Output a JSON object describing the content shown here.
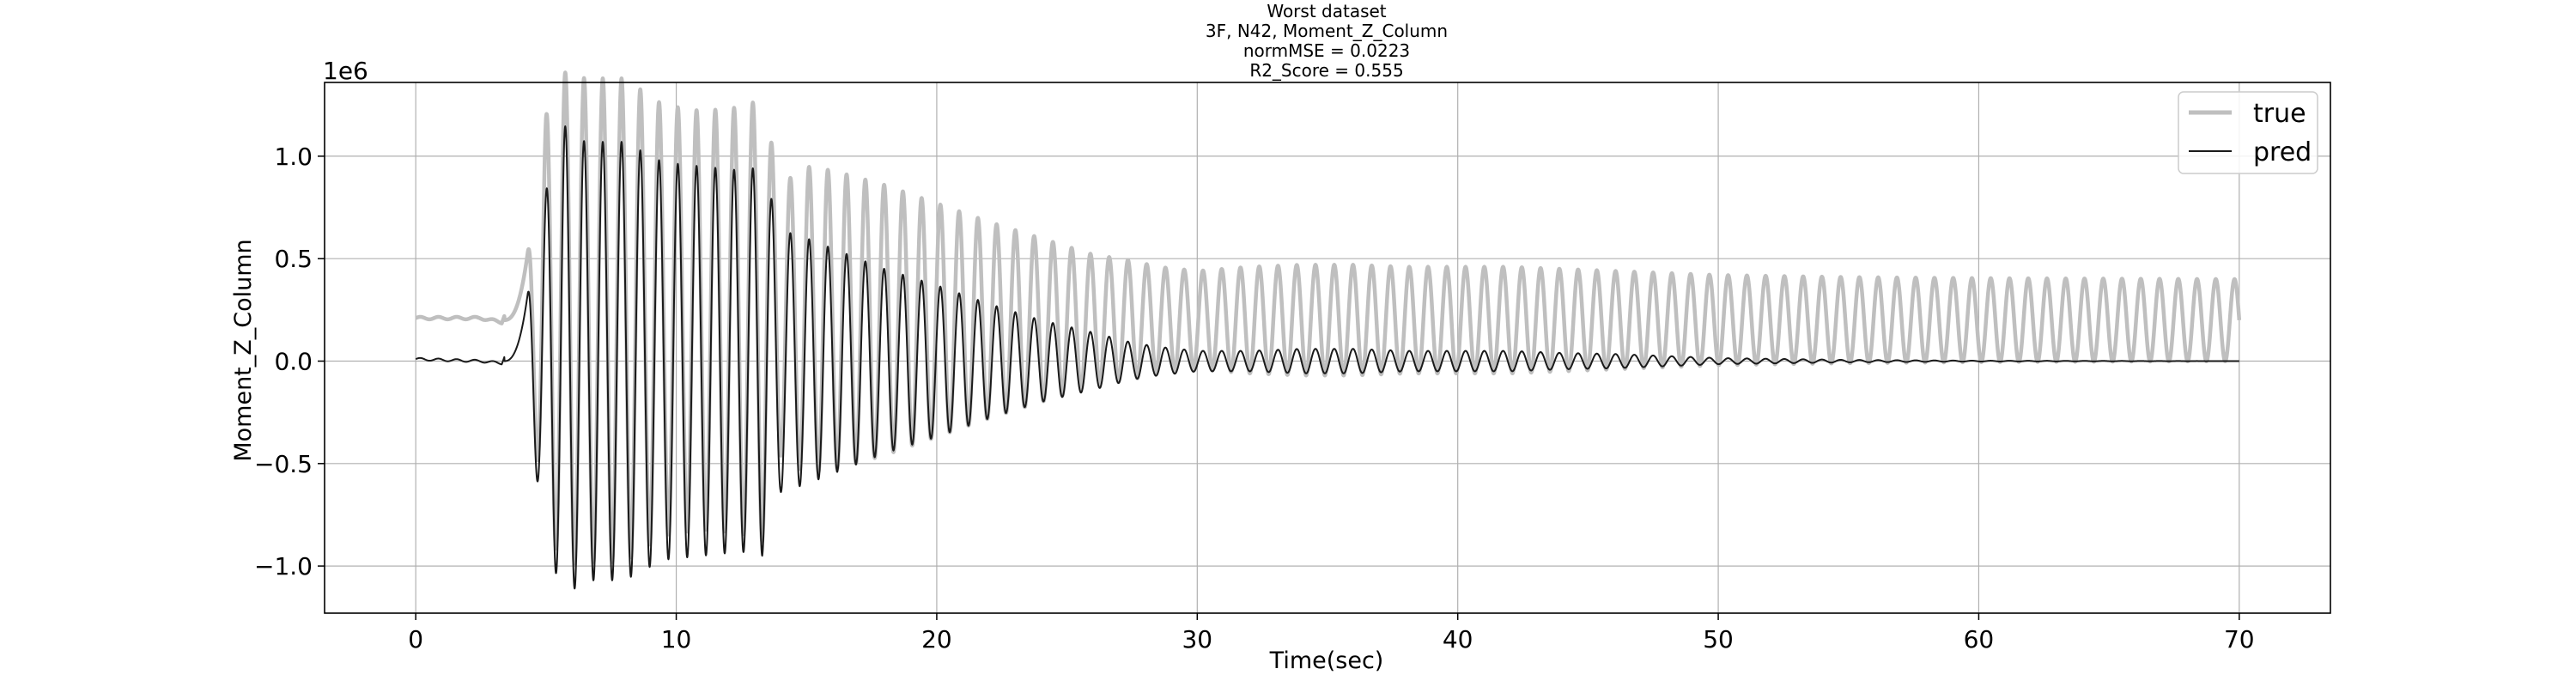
{
  "chart_data": {
    "type": "line",
    "title_lines": [
      "Worst dataset",
      "3F, N42, Moment_Z_Column",
      "normMSE = 0.0223",
      "R2_Score = 0.555"
    ],
    "xlabel": "Time(sec)",
    "ylabel": "Moment_Z_Column",
    "y_offset_text": "1e6",
    "xlim": [
      -3.5,
      73.5
    ],
    "ylim": [
      -1.23,
      1.36
    ],
    "x_ticks": [
      0,
      10,
      20,
      30,
      40,
      50,
      60,
      70
    ],
    "x_tick_labels": [
      "0",
      "10",
      "20",
      "30",
      "40",
      "50",
      "60",
      "70"
    ],
    "y_ticks": [
      -1.0,
      -0.5,
      0.0,
      0.5,
      1.0
    ],
    "y_tick_labels": [
      "−1.0",
      "−0.5",
      "0.0",
      "0.5",
      "1.0"
    ],
    "grid": true,
    "legend_position": "top-right",
    "series": [
      {
        "name": "true",
        "color": "#bfbfbf",
        "style": "thick",
        "baseline": 0.2,
        "envelope": [
          [
            0,
            0.01
          ],
          [
            2.5,
            0.01
          ],
          [
            3.3,
            -0.01
          ],
          [
            4.3,
            0.33
          ],
          [
            5.0,
            1.0
          ],
          [
            5.7,
            1.21
          ],
          [
            6.5,
            1.18
          ],
          [
            8.0,
            1.18
          ],
          [
            9.5,
            1.05
          ],
          [
            11.0,
            1.02
          ],
          [
            12.5,
            1.04
          ],
          [
            13.3,
            1.08
          ],
          [
            14.0,
            0.66
          ],
          [
            15.0,
            0.75
          ],
          [
            16.0,
            0.73
          ],
          [
            18.0,
            0.66
          ],
          [
            20.0,
            0.57
          ],
          [
            22.0,
            0.48
          ],
          [
            24.0,
            0.4
          ],
          [
            26.0,
            0.32
          ],
          [
            27.5,
            0.29
          ],
          [
            28.5,
            0.26
          ],
          [
            30.0,
            0.24
          ],
          [
            32.0,
            0.26
          ],
          [
            34.0,
            0.27
          ],
          [
            36.0,
            0.27
          ],
          [
            38.0,
            0.26
          ],
          [
            40.0,
            0.26
          ],
          [
            42.0,
            0.26
          ],
          [
            44.0,
            0.25
          ],
          [
            46.0,
            0.24
          ],
          [
            48.0,
            0.23
          ],
          [
            50.0,
            0.22
          ],
          [
            55.0,
            0.21
          ],
          [
            60.0,
            0.205
          ],
          [
            70.0,
            0.2
          ]
        ],
        "period": 0.72
      },
      {
        "name": "pred",
        "color": "#1a1a1a",
        "style": "thin",
        "baseline": 0.0,
        "envelope": [
          [
            0,
            0.01
          ],
          [
            2.5,
            0.0
          ],
          [
            3.3,
            -0.01
          ],
          [
            4.3,
            0.33
          ],
          [
            4.8,
            0.68
          ],
          [
            5.2,
            0.97
          ],
          [
            5.7,
            1.15
          ],
          [
            6.5,
            1.07
          ],
          [
            8.0,
            1.07
          ],
          [
            9.5,
            0.97
          ],
          [
            11.0,
            0.95
          ],
          [
            12.5,
            0.93
          ],
          [
            13.3,
            0.95
          ],
          [
            14.0,
            0.64
          ],
          [
            15.0,
            0.6
          ],
          [
            16.0,
            0.55
          ],
          [
            18.0,
            0.45
          ],
          [
            20.0,
            0.37
          ],
          [
            22.0,
            0.28
          ],
          [
            24.0,
            0.2
          ],
          [
            26.0,
            0.14
          ],
          [
            27.5,
            0.09
          ],
          [
            28.5,
            0.07
          ],
          [
            30.0,
            0.05
          ],
          [
            32.0,
            0.05
          ],
          [
            34.0,
            0.06
          ],
          [
            36.0,
            0.06
          ],
          [
            38.0,
            0.05
          ],
          [
            40.0,
            0.05
          ],
          [
            42.0,
            0.05
          ],
          [
            44.0,
            0.04
          ],
          [
            46.0,
            0.035
          ],
          [
            48.0,
            0.025
          ],
          [
            50.0,
            0.015
          ],
          [
            55.0,
            0.006
          ],
          [
            60.0,
            0.002
          ],
          [
            70.0,
            0.0
          ]
        ],
        "period": 0.72
      }
    ]
  }
}
